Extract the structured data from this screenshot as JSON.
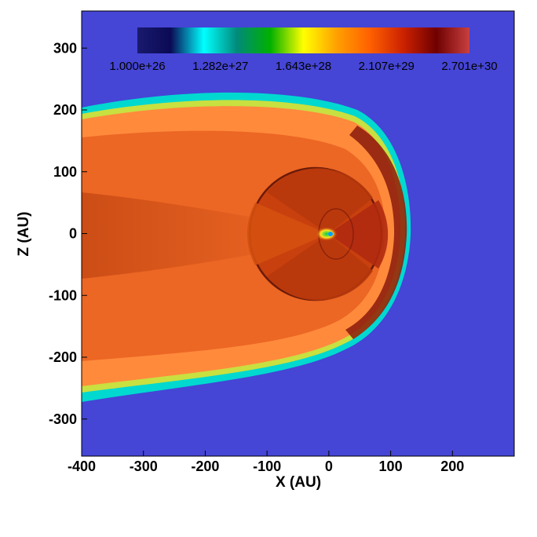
{
  "chart_data": {
    "type": "heatmap",
    "title": "",
    "xlabel": "X (AU)",
    "ylabel": "Z (AU)",
    "xlim": [
      -400,
      300
    ],
    "ylim": [
      -360,
      360
    ],
    "x_ticks": [
      -400,
      -300,
      -200,
      -100,
      0,
      100,
      200
    ],
    "y_ticks": [
      -300,
      -200,
      -100,
      0,
      100,
      200,
      300
    ],
    "colorbar": {
      "scale": "log",
      "tick_labels": [
        "1.000e+26",
        "1.282e+27",
        "1.643e+28",
        "2.107e+29",
        "2.701e+30"
      ],
      "min": 1e+26,
      "max": 2.701e+30,
      "colormap": [
        "#1a1a6e",
        "#0a0a55",
        "#00ffff",
        "#008a7a",
        "#00b000",
        "#ffff00",
        "#ffa000",
        "#ff6000",
        "#cc2200",
        "#700000",
        "#c84040"
      ]
    },
    "background_value_color": "#4545d6",
    "region_colors": {
      "outer_heliosheath": "#ff8a3c",
      "inner_flow": "#e55a1c",
      "tail_band": "#cc4a12",
      "termination_shock_interior": "#b8360c",
      "boundary_fringe": [
        "#00e0d0",
        "#b0e030",
        "#ffe040"
      ],
      "center": "#00c040"
    }
  }
}
